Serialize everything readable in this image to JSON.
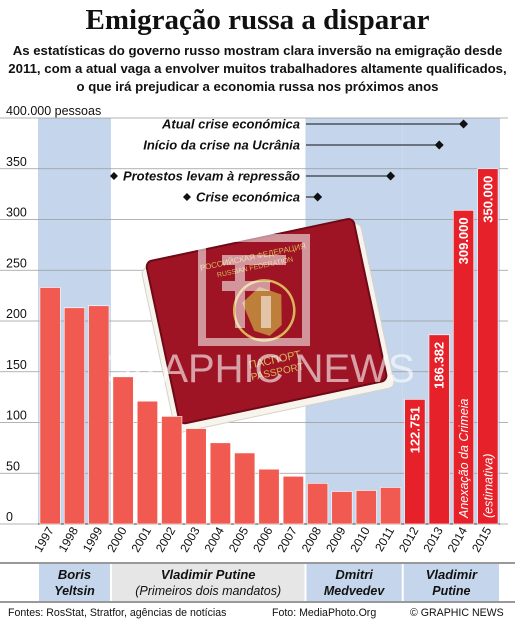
{
  "header": {
    "title": "Emigração russa a disparar",
    "subtitle": "As estatísticas do governo russo mostram clara inversão na emigração desde 2011, com a atual vaga a envolver muitos trabalhadores altamente qualificados, o que irá prejudicar a economia russa nos próximos anos"
  },
  "chart_data": {
    "type": "bar",
    "ylabel": "400.000 pessoas",
    "ylim": [
      0,
      400
    ],
    "yticks": [
      "0",
      "50",
      "100",
      "150",
      "200",
      "250",
      "300",
      "350",
      "400"
    ],
    "categories": [
      "1997",
      "1998",
      "1999",
      "2000",
      "2001",
      "2002",
      "2003",
      "2004",
      "2005",
      "2006",
      "2007",
      "2008",
      "2009",
      "2010",
      "2011",
      "2012",
      "2013",
      "2014",
      "2015"
    ],
    "values": [
      233,
      213,
      215,
      145,
      121,
      106,
      94,
      80,
      70,
      54,
      47,
      40,
      32,
      33,
      36,
      122.751,
      186.382,
      309.0,
      350.0
    ],
    "data_labels": [
      "",
      "",
      "",
      "",
      "",
      "",
      "",
      "",
      "",
      "",
      "",
      "",
      "",
      "",
      "",
      "122.751",
      "186.382",
      "309.000",
      "350.000"
    ],
    "annotations": {
      "bar_2014": "Anexação da Crimeia",
      "bar_2015": "(estimativa)"
    },
    "colors": {
      "bar": "#f15a50",
      "bar_highlight": "#e62129",
      "shade": "#c5d6ec"
    },
    "events": [
      {
        "label": "Atual crise económica",
        "end_year": "2014"
      },
      {
        "label": "Início da crise na Ucrânia",
        "end_year": "2013"
      },
      {
        "label": "Protestos levam à repressão",
        "end_year": "2011"
      },
      {
        "label": "Crise económica",
        "end_year": "2008"
      }
    ],
    "periods": [
      {
        "name": "Boris",
        "name2": "Yeltsin",
        "start": "1997",
        "end": "1999",
        "shade": true
      },
      {
        "name": "Vladimir Putine",
        "name2": "(Primeiros dois mandatos)",
        "start": "2000",
        "end": "2007",
        "shade": false
      },
      {
        "name": "Dmitri",
        "name2": "Medvedev",
        "start": "2008",
        "end": "2011",
        "shade": true
      },
      {
        "name": "Vladimir",
        "name2": "Putine",
        "start": "2012",
        "end": "2015",
        "shade": true
      }
    ]
  },
  "footer": {
    "sources": "Fontes: RosStat, Stratfor, agências de notícias",
    "photo": "Foto: MediaPhoto.Org",
    "copyright": "© GRAPHIC NEWS"
  },
  "watermark": "GRAPHIC NEWS",
  "photo": {
    "cover_top": "РОССИЙСКАЯ ФЕДЕРАЦИЯ",
    "cover_top2": "RUSSIAN FEDERATION",
    "cover_bottom": "ПАСПОРТ",
    "cover_bottom2": "PASSPORT"
  }
}
